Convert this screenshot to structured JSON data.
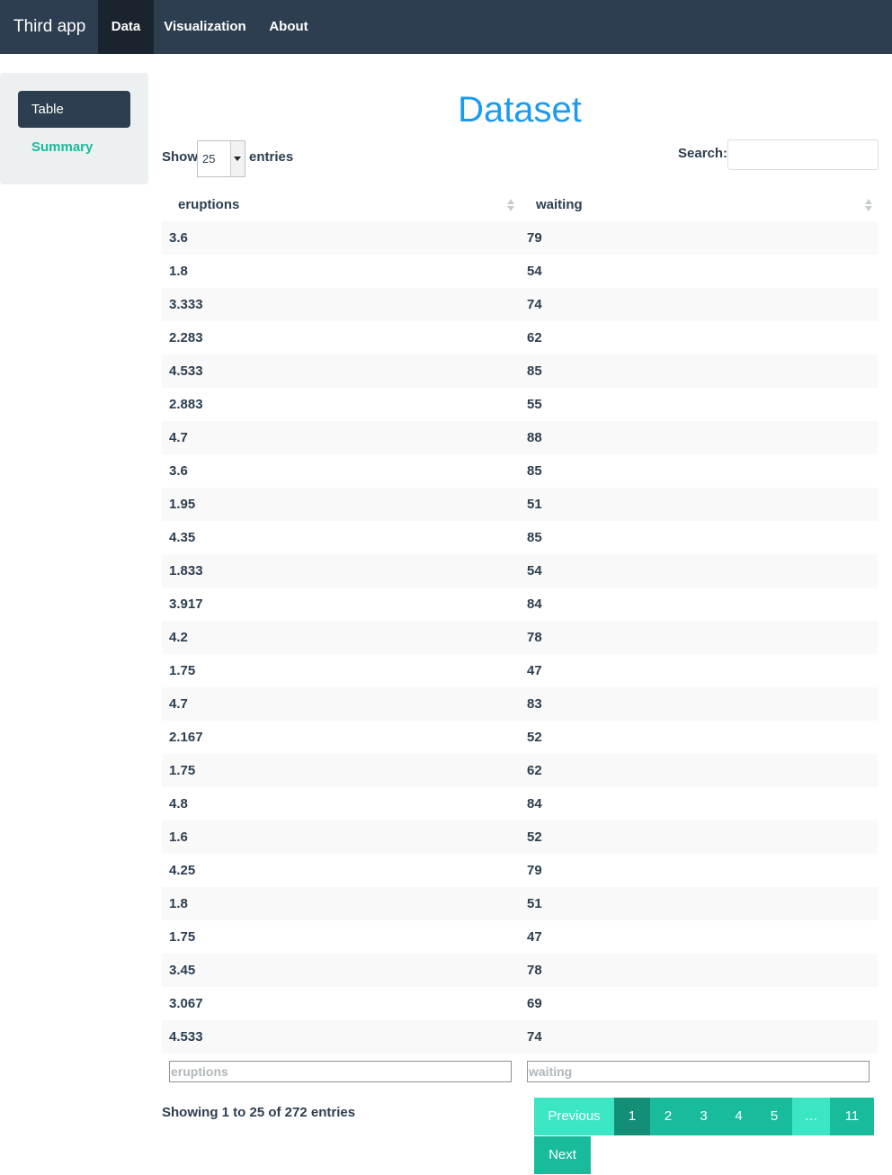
{
  "navbar": {
    "brand": "Third app",
    "items": [
      {
        "label": "Data",
        "active": true
      },
      {
        "label": "Visualization",
        "active": false
      },
      {
        "label": "About",
        "active": false
      }
    ]
  },
  "sidebar": {
    "items": [
      {
        "label": "Table",
        "active": true
      },
      {
        "label": "Summary",
        "active": false
      }
    ]
  },
  "page": {
    "title": "Dataset"
  },
  "controls": {
    "show_label": "Show",
    "page_length": "25",
    "entries_label": "entries",
    "search_label": "Search:",
    "search_value": ""
  },
  "table": {
    "columns": [
      "eruptions",
      "waiting"
    ],
    "rows": [
      [
        "3.6",
        "79"
      ],
      [
        "1.8",
        "54"
      ],
      [
        "3.333",
        "74"
      ],
      [
        "2.283",
        "62"
      ],
      [
        "4.533",
        "85"
      ],
      [
        "2.883",
        "55"
      ],
      [
        "4.7",
        "88"
      ],
      [
        "3.6",
        "85"
      ],
      [
        "1.95",
        "51"
      ],
      [
        "4.35",
        "85"
      ],
      [
        "1.833",
        "54"
      ],
      [
        "3.917",
        "84"
      ],
      [
        "4.2",
        "78"
      ],
      [
        "1.75",
        "47"
      ],
      [
        "4.7",
        "83"
      ],
      [
        "2.167",
        "52"
      ],
      [
        "1.75",
        "62"
      ],
      [
        "4.8",
        "84"
      ],
      [
        "1.6",
        "52"
      ],
      [
        "4.25",
        "79"
      ],
      [
        "1.8",
        "51"
      ],
      [
        "1.75",
        "47"
      ],
      [
        "3.45",
        "78"
      ],
      [
        "3.067",
        "69"
      ],
      [
        "4.533",
        "74"
      ]
    ],
    "filter_placeholders": [
      "eruptions",
      "waiting"
    ]
  },
  "info": "Showing 1 to 25 of 272 entries",
  "pagination": {
    "previous": "Previous",
    "pages": [
      "1",
      "2",
      "3",
      "4",
      "5"
    ],
    "ellipsis": "…",
    "last": "11",
    "next": "Next",
    "current": "1"
  },
  "colors": {
    "navbar": "#2c3e50",
    "accent": "#18bc9c",
    "title": "#1b9bf0"
  }
}
